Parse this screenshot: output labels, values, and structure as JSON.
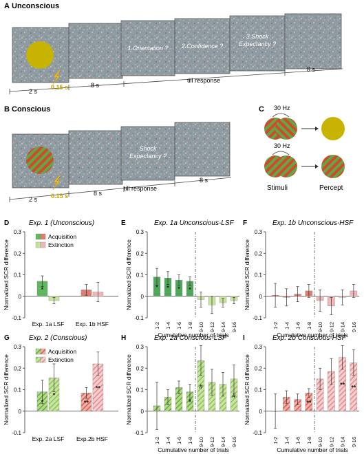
{
  "panelA": {
    "letter": "A",
    "title": "Unconscious",
    "screens": [
      {
        "type": "stimulus",
        "text": ""
      },
      {
        "type": "noise",
        "text": ""
      },
      {
        "type": "question",
        "text": "1.Orientation ?"
      },
      {
        "type": "question",
        "text": "2.Confidence ?"
      },
      {
        "type": "question",
        "text": "3.Shock Expectancy ?"
      },
      {
        "type": "noise",
        "text": ""
      }
    ],
    "timeline": {
      "t1": "2 s",
      "t2": "0.15 s",
      "t3": "8 s",
      "t4": "till response",
      "t5": "8 s"
    }
  },
  "panelB": {
    "letter": "B",
    "title": "Conscious",
    "screens": [
      {
        "type": "stimulus",
        "text": ""
      },
      {
        "type": "noise",
        "text": ""
      },
      {
        "type": "question",
        "text": "Shock Expectancy ?"
      },
      {
        "type": "noise",
        "text": ""
      }
    ],
    "timeline": {
      "t1": "2 s",
      "t2": "0.15 s",
      "t3": "8 s",
      "t4": "till response",
      "t5": "8 s"
    }
  },
  "panelC": {
    "letter": "C",
    "freq_top": "30 Hz",
    "freq_bottom": "30 Hz",
    "label_stimuli": "Stimuli",
    "label_percept": "Percept"
  },
  "colors": {
    "green": "#5fb85f",
    "green_light": "#c7e59a",
    "red": "#e07c70",
    "pink": "#f2b5b8",
    "gold": "#c8b400",
    "screen": "#8a9a9e"
  },
  "chart_data": [
    {
      "id": "D",
      "letter": "D",
      "type": "bar",
      "title": "Exp. 1  (Unconscious)",
      "ylabel": "Normalized SCR difference",
      "ylim": [
        -0.1,
        0.3
      ],
      "yticks": [
        "-0.1",
        "0",
        "0.1",
        "0.2",
        "0.3"
      ],
      "legend": [
        "Acquisition",
        "Extinction"
      ],
      "categories": [
        "Exp. 1a  LSF",
        "Exp. 1b  HSF"
      ],
      "series": [
        {
          "name": "Acquisition",
          "values": [
            0.07,
            0.03
          ],
          "errors": [
            0.025,
            0.025
          ]
        },
        {
          "name": "Extinction",
          "values": [
            -0.02,
            0.02
          ],
          "errors": [
            0.015,
            0.045
          ]
        }
      ],
      "markers": [
        "*",
        "",
        "",
        ""
      ]
    },
    {
      "id": "E",
      "letter": "E",
      "type": "bar",
      "title": "Exp. 1a Unconscious-LSF",
      "ylabel": "Normalized SCR difference",
      "xlabel": "Cumulative number of trials",
      "ylim": [
        -0.1,
        0.3
      ],
      "yticks": [
        "-0.1",
        "0",
        "0.1",
        "0.2",
        "0.3"
      ],
      "categories": [
        "1-2",
        "1-4",
        "1-6",
        "1-8",
        "9-10",
        "9-12",
        "9-14",
        "9-16"
      ],
      "values": [
        0.09,
        0.085,
        0.075,
        0.07,
        -0.015,
        -0.04,
        -0.03,
        -0.02
      ],
      "errors": [
        0.04,
        0.03,
        0.025,
        0.02,
        0.035,
        0.04,
        0.02,
        0.015
      ],
      "markers": [
        "*",
        "*",
        "*",
        "*",
        "",
        "",
        "",
        ""
      ]
    },
    {
      "id": "F",
      "letter": "F",
      "type": "bar",
      "title": "Exp. 1b Unconscious-HSF",
      "ylabel": "Normalized SCR difference",
      "xlabel": "Cumulative number of trials",
      "ylim": [
        -0.1,
        0.3
      ],
      "yticks": [
        "-0.1",
        "0",
        "0.1",
        "0.2",
        "0.3"
      ],
      "categories": [
        "1-2",
        "1-4",
        "1-6",
        "1-8",
        "9-10",
        "9-12",
        "9-14",
        "9-16"
      ],
      "values": [
        0.005,
        -0.005,
        0.01,
        0.025,
        -0.02,
        -0.045,
        -0.005,
        0.025
      ],
      "errors": [
        0.055,
        0.04,
        0.035,
        0.03,
        0.05,
        0.04,
        0.035,
        0.03
      ],
      "markers": [
        "",
        "",
        "",
        "",
        "",
        "",
        "",
        ""
      ]
    },
    {
      "id": "G",
      "letter": "G",
      "type": "bar",
      "title": "Exp. 2  (Conscious)",
      "ylabel": "Normalized SCR difference",
      "ylim": [
        -0.1,
        0.3
      ],
      "yticks": [
        "-0.1",
        "0",
        "0.1",
        "0.2",
        "0.3"
      ],
      "legend": [
        "Acquisition",
        "Extinction"
      ],
      "categories": [
        "Exp. 2a  LSF",
        "Exp.2b  HSF"
      ],
      "series": [
        {
          "name": "Acquisition",
          "values": [
            0.09,
            0.085
          ],
          "errors": [
            0.055,
            0.025
          ]
        },
        {
          "name": "Extinction",
          "values": [
            0.155,
            0.22
          ],
          "errors": [
            0.065,
            0.055
          ]
        }
      ],
      "markers": [
        "*",
        "*",
        "**",
        "**"
      ]
    },
    {
      "id": "H",
      "letter": "H",
      "type": "bar",
      "title": "Exp. 2a Conscious-LSF",
      "ylabel": "Normalized SCR difference",
      "xlabel": "Cumulative number of trials",
      "ylim": [
        -0.1,
        0.3
      ],
      "yticks": [
        "-0.1",
        "0",
        "0.1",
        "0.2",
        "0.3"
      ],
      "categories": [
        "1-2",
        "1-4",
        "1-6",
        "1-8",
        "9-10",
        "9-12",
        "9-14",
        "9-16"
      ],
      "values": [
        0.025,
        0.065,
        0.11,
        0.09,
        0.235,
        0.135,
        0.125,
        0.15
      ],
      "errors": [
        0.11,
        0.035,
        0.03,
        0.035,
        0.07,
        0.06,
        0.055,
        0.065
      ],
      "markers": [
        "",
        "",
        "",
        "*",
        "#",
        "",
        "",
        "#"
      ]
    },
    {
      "id": "I",
      "letter": "I",
      "type": "bar",
      "title": "Exp. 2b Conscious-HSF",
      "ylabel": "Normalized SCR difference",
      "xlabel": "Cumulative number of trials",
      "ylim": [
        -0.1,
        0.3
      ],
      "yticks": [
        "-0.1",
        "0",
        "0.1",
        "0.2",
        "0.3"
      ],
      "categories": [
        "1-2",
        "1-4",
        "1-6",
        "1-8",
        "9-10",
        "9-12",
        "9-14",
        "9-16"
      ],
      "values": [
        0.0,
        0.065,
        0.055,
        0.085,
        0.15,
        0.185,
        0.25,
        0.225
      ],
      "errors": [
        0.08,
        0.03,
        0.025,
        0.02,
        0.05,
        0.06,
        0.055,
        0.06
      ],
      "markers": [
        "",
        "",
        "",
        "**",
        "",
        "",
        "**",
        "**"
      ]
    }
  ]
}
